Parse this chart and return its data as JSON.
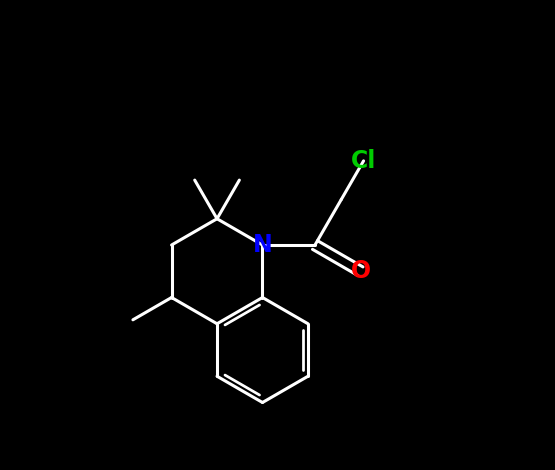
{
  "background_color": "#000000",
  "bond_color": "#ffffff",
  "bond_width": 2.2,
  "N_color": "#0000ff",
  "O_color": "#ff0000",
  "Cl_color": "#00cc00",
  "N_label": "N",
  "O_label": "O",
  "Cl_label": "Cl",
  "N_fontsize": 17,
  "O_fontsize": 17,
  "Cl_fontsize": 17,
  "figsize": [
    5.55,
    4.7
  ],
  "dpi": 100,
  "xlim": [
    0,
    11
  ],
  "ylim": [
    0,
    9.4
  ]
}
